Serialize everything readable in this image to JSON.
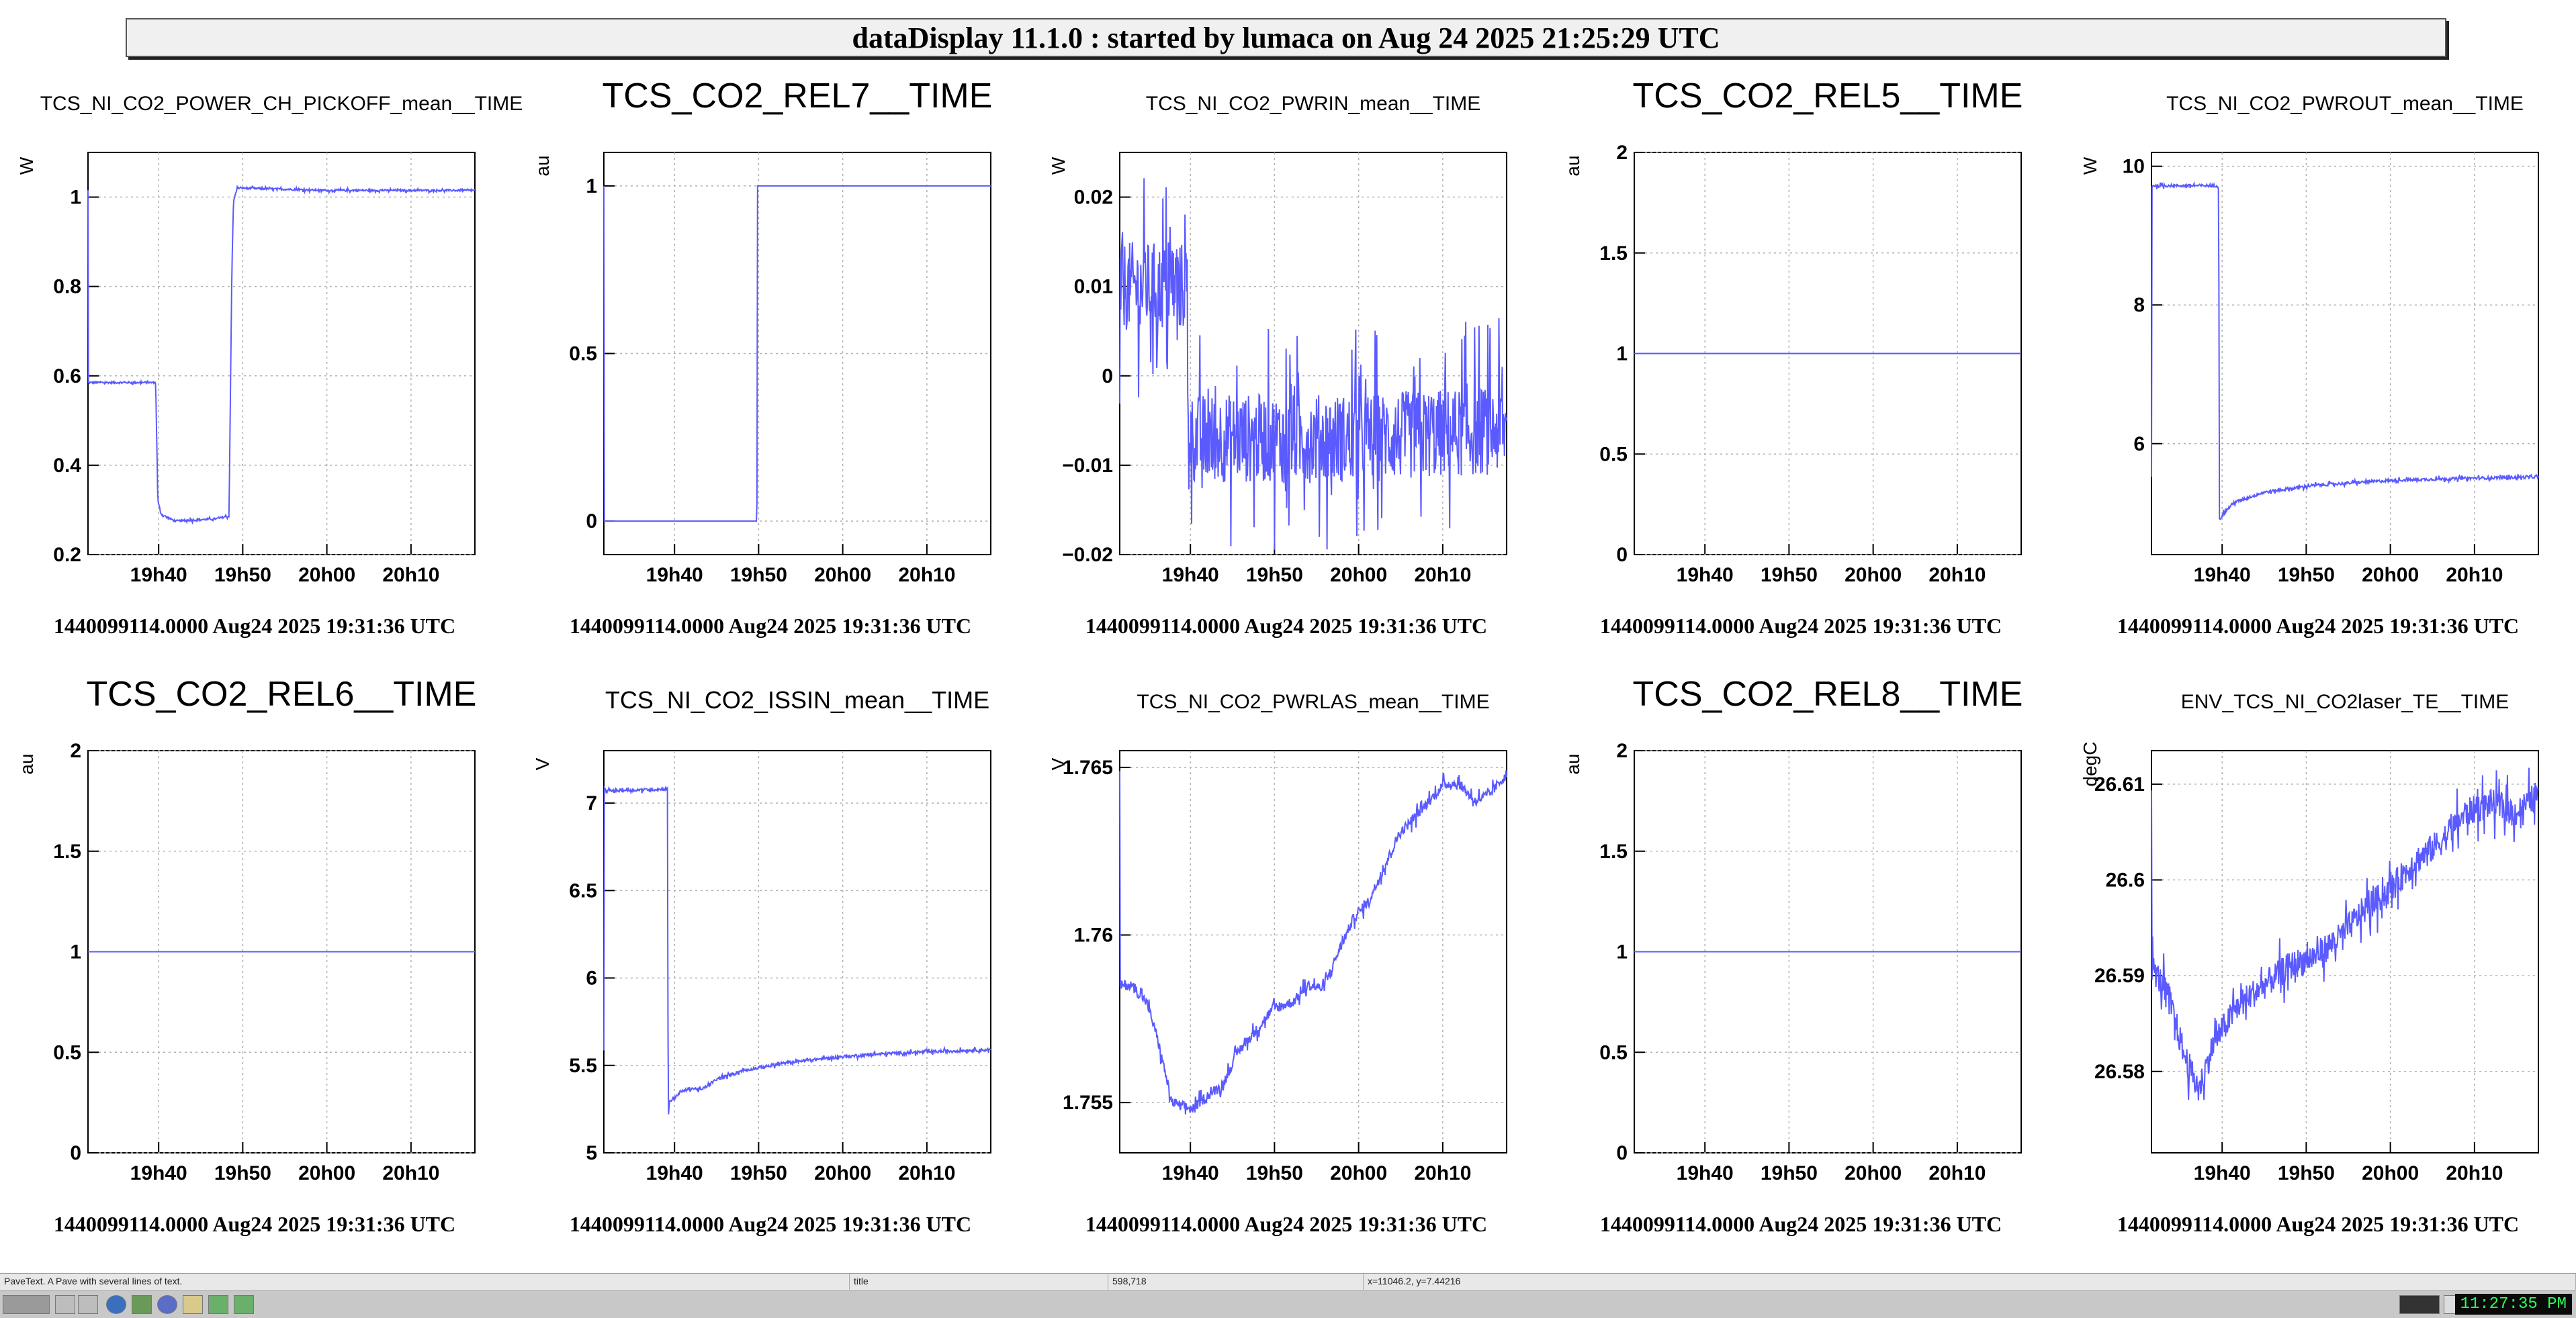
{
  "window_title": "dataDisplay 11.1.0 : started by lumaca on Aug 24 2025 21:25:29 UTC",
  "x_ticks": [
    {
      "t": 19.6667,
      "label": "19h40"
    },
    {
      "t": 19.8333,
      "label": "19h50"
    },
    {
      "t": 20.0,
      "label": "20h00"
    },
    {
      "t": 20.1667,
      "label": "20h10"
    }
  ],
  "x_range": [
    19.5267,
    20.2933
  ],
  "colors": {
    "trace": "#5a5aff",
    "grid": "#b0b0b0",
    "axis": "#000000"
  },
  "chart_data": [
    {
      "type": "line",
      "title": "TCS_NI_CO2_POWER_CH_PICKOFF_mean__TIME",
      "title_size": "small",
      "ylabel": "W",
      "ylim": [
        0.2,
        1.1
      ],
      "yticks": [
        0.2,
        0.4,
        0.6,
        0.8,
        1
      ],
      "yticklabels": [
        "0.2",
        "0.4",
        "0.6",
        "0.8",
        "1"
      ],
      "start_label": "1440099114.0000 Aug24 2025 19:31:36 UTC",
      "noise": 0.002,
      "series": [
        {
          "name": "TCS_NI_CO2_POWER_CH_PICKOFF_mean",
          "x": [
            19.527,
            19.66,
            19.661,
            19.665,
            19.672,
            19.69,
            19.7,
            19.78,
            19.8,
            19.806,
            19.812,
            19.815,
            19.822,
            19.84,
            20.0,
            20.293
          ],
          "y": [
            0.585,
            0.585,
            0.58,
            0.32,
            0.29,
            0.28,
            0.275,
            0.28,
            0.285,
            0.285,
            0.85,
            0.99,
            1.02,
            1.02,
            1.015,
            1.015
          ]
        }
      ]
    },
    {
      "type": "line",
      "title": "TCS_CO2_REL7__TIME",
      "title_size": "large",
      "ylabel": "au",
      "ylim": [
        -0.1,
        1.1
      ],
      "yticks": [
        0,
        0.5,
        1
      ],
      "yticklabels": [
        "0",
        "0.5",
        "1"
      ],
      "start_label": "1440099114.0000 Aug24 2025 19:31:36 UTC",
      "noise": 0,
      "series": [
        {
          "name": "TCS_CO2_REL7",
          "x": [
            19.527,
            19.83,
            19.831,
            20.293
          ],
          "y": [
            0,
            0,
            1,
            1
          ]
        }
      ]
    },
    {
      "type": "line",
      "title": "TCS_NI_CO2_PWRIN_mean__TIME",
      "title_size": "small",
      "ylabel": "W",
      "ylim": [
        -0.02,
        0.025
      ],
      "yticks": [
        -0.02,
        -0.01,
        0,
        0.01,
        0.02
      ],
      "yticklabels": [
        "−0.02",
        "−0.01",
        "0",
        "0.01",
        "0.02"
      ],
      "start_label": "1440099114.0000 Aug24 2025 19:31:36 UTC",
      "noise": 0.005,
      "series": [
        {
          "name": "TCS_NI_CO2_PWRIN_mean",
          "x": [
            19.527,
            19.66,
            19.661,
            19.67,
            20.0,
            20.293
          ],
          "y": [
            0.01,
            0.01,
            -0.004,
            -0.007,
            -0.007,
            -0.006
          ]
        }
      ]
    },
    {
      "type": "line",
      "title": "TCS_CO2_REL5__TIME",
      "title_size": "large",
      "ylabel": "au",
      "ylim": [
        0,
        2
      ],
      "yticks": [
        0,
        0.5,
        1,
        1.5,
        2
      ],
      "yticklabels": [
        "0",
        "0.5",
        "1",
        "1.5",
        "2"
      ],
      "start_label": "1440099114.0000 Aug24 2025 19:31:36 UTC",
      "noise": 0,
      "series": [
        {
          "name": "TCS_CO2_REL5",
          "x": [
            19.527,
            20.293
          ],
          "y": [
            1,
            1
          ]
        }
      ]
    },
    {
      "type": "line",
      "title": "TCS_NI_CO2_PWROUT_mean__TIME",
      "title_size": "small",
      "ylabel": "W",
      "ylim": [
        4.4,
        10.2
      ],
      "yticks": [
        6,
        8,
        10
      ],
      "yticklabels": [
        "6",
        "8",
        "10"
      ],
      "start_label": "1440099114.0000 Aug24 2025 19:31:36 UTC",
      "noise": 0.02,
      "series": [
        {
          "name": "TCS_NI_CO2_PWROUT_mean",
          "x": [
            19.527,
            19.655,
            19.66,
            19.661,
            19.67,
            19.69,
            19.75,
            19.85,
            20.0,
            20.15,
            20.293
          ],
          "y": [
            9.72,
            9.72,
            9.72,
            4.9,
            5.0,
            5.15,
            5.3,
            5.4,
            5.47,
            5.5,
            5.52
          ]
        }
      ]
    },
    {
      "type": "line",
      "title": "TCS_CO2_REL6__TIME",
      "title_size": "large",
      "ylabel": "au",
      "ylim": [
        0,
        2
      ],
      "yticks": [
        0,
        0.5,
        1,
        1.5,
        2
      ],
      "yticklabels": [
        "0",
        "0.5",
        "1",
        "1.5",
        "2"
      ],
      "start_label": "1440099114.0000 Aug24 2025 19:31:36 UTC",
      "noise": 0,
      "series": [
        {
          "name": "TCS_CO2_REL6",
          "x": [
            19.527,
            20.293
          ],
          "y": [
            1,
            1
          ]
        }
      ]
    },
    {
      "type": "line",
      "title": "TCS_NI_CO2_ISSIN_mean__TIME",
      "title_size": "medium",
      "ylabel": "V",
      "ylim": [
        5,
        7.3
      ],
      "yticks": [
        5,
        5.5,
        6,
        6.5,
        7
      ],
      "yticklabels": [
        "5",
        "5.5",
        "6",
        "6.5",
        "7"
      ],
      "start_label": "1440099114.0000 Aug24 2025 19:31:36 UTC",
      "noise": 0.008,
      "series": [
        {
          "name": "TCS_NI_CO2_ISSIN_mean",
          "x": [
            19.527,
            19.653,
            19.654,
            19.657,
            19.66,
            19.68,
            19.7,
            19.72,
            19.75,
            19.8,
            19.9,
            20.0,
            20.1,
            20.293
          ],
          "y": [
            7.07,
            7.08,
            5.2,
            5.3,
            5.3,
            5.35,
            5.37,
            5.36,
            5.42,
            5.47,
            5.52,
            5.55,
            5.57,
            5.59
          ]
        }
      ]
    },
    {
      "type": "line",
      "title": "TCS_NI_CO2_PWRLAS_mean__TIME",
      "title_size": "small",
      "ylabel": "V",
      "ylim": [
        1.7535,
        1.7655
      ],
      "yticks": [
        1.755,
        1.76,
        1.765
      ],
      "yticklabels": [
        "1.755",
        "1.76",
        "1.765"
      ],
      "start_label": "1440099114.0000 Aug24 2025 19:31:36 UTC",
      "noise": 0.00015,
      "series": [
        {
          "name": "TCS_NI_CO2_PWRLAS_mean",
          "x": [
            19.527,
            19.55,
            19.58,
            19.6,
            19.63,
            19.67,
            19.7,
            19.73,
            19.76,
            19.8,
            19.83,
            19.87,
            19.9,
            19.93,
            19.96,
            19.99,
            20.02,
            20.05,
            20.08,
            20.11,
            20.14,
            20.17,
            20.2,
            20.23,
            20.26,
            20.293
          ],
          "y": [
            1.7585,
            1.7585,
            1.758,
            1.757,
            1.755,
            1.7548,
            1.7552,
            1.7555,
            1.7565,
            1.7572,
            1.7578,
            1.758,
            1.7585,
            1.7584,
            1.7595,
            1.7605,
            1.761,
            1.762,
            1.763,
            1.7635,
            1.764,
            1.7645,
            1.7645,
            1.764,
            1.7642,
            1.7648
          ]
        }
      ]
    },
    {
      "type": "line",
      "title": "TCS_CO2_REL8__TIME",
      "title_size": "large",
      "ylabel": "au",
      "ylim": [
        0,
        2
      ],
      "yticks": [
        0,
        0.5,
        1,
        1.5,
        2
      ],
      "yticklabels": [
        "0",
        "0.5",
        "1",
        "1.5",
        "2"
      ],
      "start_label": "1440099114.0000 Aug24 2025 19:31:36 UTC",
      "noise": 0,
      "series": [
        {
          "name": "TCS_CO2_REL8",
          "x": [
            19.527,
            20.293
          ],
          "y": [
            1,
            1
          ]
        }
      ]
    },
    {
      "type": "line",
      "title": "ENV_TCS_NI_CO2laser_TE__TIME",
      "title_size": "small",
      "ylabel": "degC",
      "ylim": [
        26.5715,
        26.6135
      ],
      "yticks": [
        26.58,
        26.59,
        26.6,
        26.61
      ],
      "yticklabels": [
        "26.58",
        "26.59",
        "26.6",
        "26.61"
      ],
      "start_label": "1440099114.0000 Aug24 2025 19:31:36 UTC",
      "noise": 0.0015,
      "series": [
        {
          "name": "ENV_TCS_NI_CO2laser_TE",
          "x": [
            19.527,
            19.56,
            19.59,
            19.62,
            19.65,
            19.7,
            19.75,
            19.8,
            19.85,
            19.9,
            19.95,
            20.0,
            20.05,
            20.1,
            20.15,
            20.2,
            20.25,
            20.293
          ],
          "y": [
            26.591,
            26.588,
            26.582,
            26.578,
            26.583,
            26.587,
            26.589,
            26.591,
            26.592,
            26.594,
            26.597,
            26.599,
            26.602,
            26.604,
            26.607,
            26.608,
            26.607,
            26.609
          ]
        }
      ]
    }
  ],
  "statusbar": [
    "PaveText. A Pave with several lines of text.",
    "title",
    "598,718",
    "x=11046.2, y=7.44216"
  ],
  "taskbar": {
    "clock": "11:27:35 PM",
    "icons": [
      "terminal-icon",
      "window-icon",
      "file-manager-icon",
      "browser-icon",
      "settings-icon",
      "web-icon",
      "editor-icon",
      "app-icon",
      "app-icon-2"
    ]
  }
}
